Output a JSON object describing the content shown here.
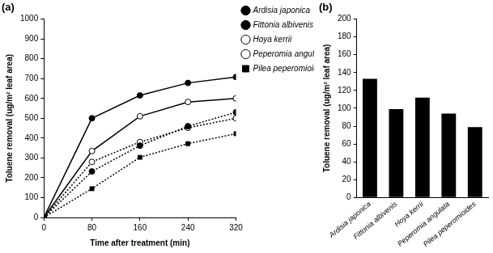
{
  "chart_data": [
    {
      "type": "line",
      "title": "(a)",
      "x_label": "Time after treatment (min)",
      "y_label": "Toluene removal (ug/m² leaf area)",
      "x": [
        0,
        80,
        160,
        240,
        320
      ],
      "series": [
        {
          "name": "Ardisia japonica",
          "color": "#000000",
          "marker": "circle",
          "line_style": "solid",
          "values": [
            0,
            500,
            615,
            678,
            708
          ]
        },
        {
          "name": "Fittonia albivenis",
          "color": "#000000",
          "marker": "circle",
          "line_style": "dotted",
          "values": [
            0,
            232,
            362,
            460,
            530
          ]
        },
        {
          "name": "Hoya kerrii",
          "color": "#000000",
          "marker": "open_circle",
          "line_style": "solid",
          "values": [
            0,
            335,
            510,
            582,
            600
          ]
        },
        {
          "name": "Peperomia angulata",
          "color": "#000000",
          "marker": "open_circle",
          "line_style": "dotted",
          "values": [
            0,
            280,
            380,
            452,
            500
          ]
        },
        {
          "name": "Pilea peperomioides",
          "color": "#000000",
          "marker": "square",
          "line_style": "dotted",
          "values": [
            0,
            145,
            303,
            372,
            422
          ]
        }
      ],
      "xlim": [
        0,
        320
      ],
      "xticks": [
        0,
        80,
        160,
        240,
        320
      ],
      "ylim": [
        0,
        1000
      ],
      "yticks": [
        0,
        100,
        200,
        300,
        400,
        500,
        600,
        700,
        800,
        900,
        1000
      ],
      "grid": false,
      "legend": "right"
    },
    {
      "type": "bar",
      "title": "(b)",
      "y_label": "Toluene removal (ug/m² leaf area)",
      "categories": [
        "Ardisia japonica",
        "Fittonia albivenis",
        "Hoya kerrii",
        "Peperomia angulata",
        "Pilea peperomioides"
      ],
      "values": [
        133,
        99,
        112,
        94,
        79
      ],
      "color": "#000000",
      "ylim": [
        0,
        200
      ],
      "yticks": [
        0,
        20,
        40,
        60,
        80,
        100,
        120,
        140,
        160,
        180,
        200
      ],
      "grid": false
    }
  ]
}
